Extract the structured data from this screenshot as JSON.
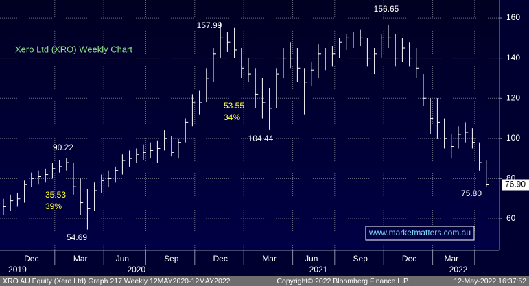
{
  "chart_data": {
    "type": "ohlc",
    "title": "Xero Ltd (XRO) Weekly Chart",
    "color": "#ffffff",
    "categories": [
      "",
      null,
      null,
      null,
      "Dec",
      null,
      null,
      null,
      null,
      null,
      null,
      "Mar",
      null,
      null,
      null,
      null,
      null,
      "Jun",
      null,
      null,
      null,
      null,
      null,
      null,
      "Sep",
      null,
      null,
      null,
      null,
      null,
      null,
      "Dec",
      null,
      null,
      null,
      null,
      null,
      null,
      "Mar",
      null,
      null,
      null,
      null,
      null,
      "Jun",
      null,
      null,
      null,
      null,
      null,
      null,
      "Sep",
      null,
      null,
      null,
      null,
      null,
      null,
      "Dec",
      null,
      null,
      null,
      null,
      null,
      "Mar",
      null,
      null,
      null,
      null,
      null
    ],
    "category_groups": [
      null,
      null,
      "2019",
      null,
      null,
      null,
      null,
      null,
      null,
      null,
      null,
      null,
      null,
      null,
      null,
      null,
      null,
      null,
      null,
      "2020",
      null,
      null,
      null,
      null,
      null,
      null,
      null,
      null,
      null,
      null,
      null,
      null,
      null,
      null,
      null,
      null,
      null,
      null,
      null,
      null,
      null,
      null,
      null,
      null,
      null,
      "2021",
      null,
      null,
      null,
      null,
      null,
      null,
      null,
      null,
      null,
      null,
      null,
      null,
      null,
      null,
      null,
      null,
      null,
      null,
      null,
      "2022",
      null,
      null,
      null,
      null
    ],
    "high": [
      70,
      72,
      73,
      79,
      83,
      84,
      85,
      88,
      89,
      90.22,
      88,
      80,
      75,
      78,
      82,
      84,
      86,
      92,
      94,
      95,
      97,
      98,
      99,
      104,
      101,
      100,
      110,
      122,
      124,
      135,
      145,
      157.99,
      153,
      155,
      145,
      140,
      135,
      130,
      125,
      135,
      145,
      148,
      145,
      135,
      138,
      147,
      145,
      146,
      150,
      152,
      153,
      154,
      150,
      145,
      152,
      156.65,
      152,
      150,
      148,
      145,
      132,
      120,
      120,
      110,
      102,
      106,
      108,
      105,
      98,
      89
    ],
    "low": [
      62,
      64,
      66,
      68,
      76,
      77,
      78,
      80,
      83,
      84,
      72,
      62,
      54.69,
      64,
      73,
      76,
      78,
      82,
      86,
      88,
      89,
      90,
      88,
      94,
      91,
      90,
      98,
      106,
      112,
      118,
      128,
      140,
      143,
      140,
      130,
      128,
      115,
      110,
      104.44,
      115,
      130,
      135,
      128,
      112,
      126,
      130,
      134,
      136,
      140,
      144,
      145,
      146,
      136,
      132,
      140,
      145,
      136,
      138,
      136,
      130,
      116,
      102,
      100,
      95,
      90,
      95,
      98,
      95,
      84,
      75.8
    ],
    "close": [
      66,
      69,
      70,
      77,
      80,
      81,
      82,
      85,
      86,
      88,
      76,
      68,
      65,
      74,
      79,
      80,
      84,
      89,
      90,
      92,
      93,
      94,
      95,
      100,
      93,
      98,
      108,
      118,
      118,
      130,
      142,
      150,
      148,
      144,
      135,
      132,
      122,
      118,
      115,
      132,
      140,
      140,
      135,
      128,
      134,
      142,
      138,
      142,
      148,
      150,
      152,
      150,
      140,
      142,
      150,
      150,
      140,
      145,
      140,
      135,
      120,
      110,
      108,
      100,
      96,
      102,
      103,
      98,
      88,
      76.9
    ],
    "ylim": [
      44.3,
      168.9
    ],
    "yticks": [
      60,
      80,
      100,
      120,
      140,
      160
    ],
    "grid": true,
    "last_price_label": "76.90",
    "annotations": [
      "157.99",
      "156.65",
      "90.22",
      "104.44",
      "54.69",
      "75.80"
    ],
    "highlights": [
      [
        "53.55",
        "34%"
      ],
      [
        "35.53",
        "39%"
      ]
    ],
    "watermark": "www.marketmatters.com.au",
    "footer": [
      "XRO AU Equity (Xero Ltd) Graph 217  Weekly 12MAY2020-12MAY2022",
      "Copyright© 2022 Bloomberg Finance L.P.",
      "12-May-2022 16:37:52"
    ]
  }
}
